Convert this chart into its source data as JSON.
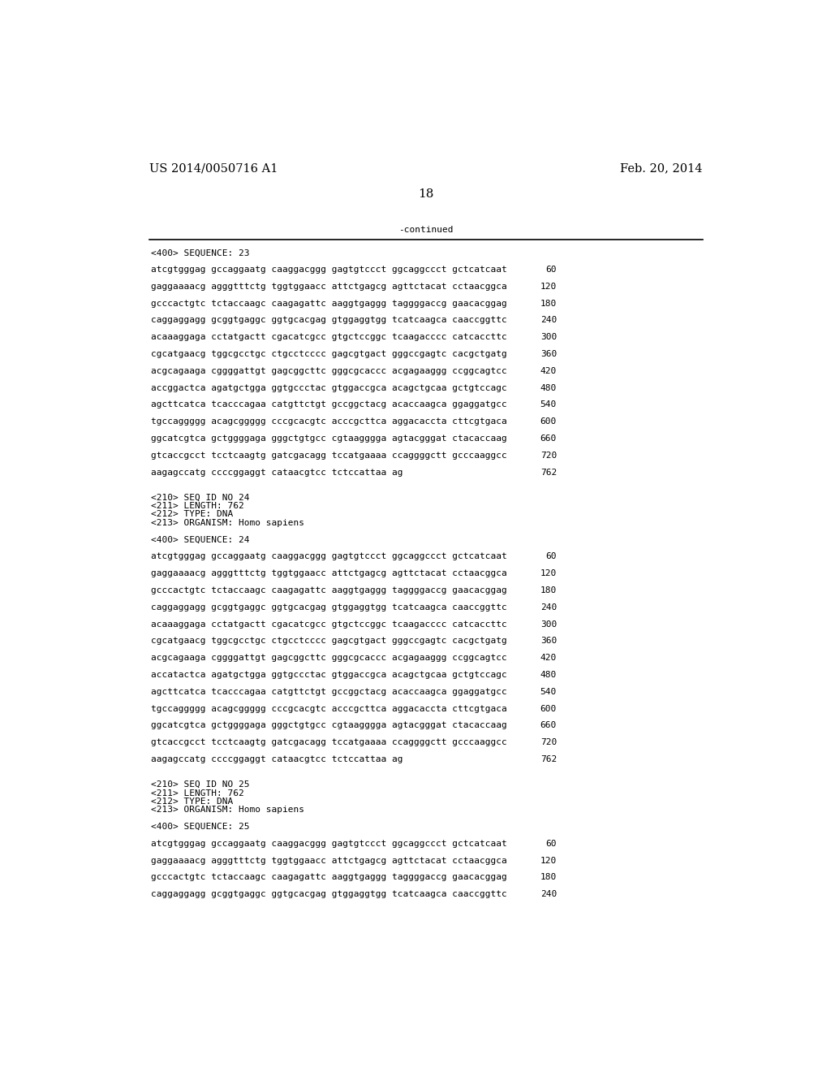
{
  "header_left": "US 2014/0050716 A1",
  "header_right": "Feb. 20, 2014",
  "page_number": "18",
  "continued_label": "-continued",
  "background_color": "#ffffff",
  "text_color": "#000000",
  "mono_font_size": 8.0,
  "header_font_size": 10.5,
  "page_num_font_size": 11.0,
  "content": [
    {
      "type": "seq_header",
      "text": "<400> SEQUENCE: 23"
    },
    {
      "type": "blank"
    },
    {
      "type": "seq_line",
      "text": "atcgtgggag gccaggaatg caaggacggg gagtgtccct ggcaggccct gctcatcaat",
      "num": "60"
    },
    {
      "type": "blank"
    },
    {
      "type": "seq_line",
      "text": "gaggaaaacg agggtttctg tggtggaacc attctgagcg agttctacat cctaacggca",
      "num": "120"
    },
    {
      "type": "blank"
    },
    {
      "type": "seq_line",
      "text": "gcccactgtc tctaccaagc caagagattc aaggtgaggg taggggaccg gaacacggag",
      "num": "180"
    },
    {
      "type": "blank"
    },
    {
      "type": "seq_line",
      "text": "caggaggagg gcggtgaggc ggtgcacgag gtggaggtgg tcatcaagca caaccggttc",
      "num": "240"
    },
    {
      "type": "blank"
    },
    {
      "type": "seq_line",
      "text": "acaaaggaga cctatgactt cgacatcgcc gtgctccggc tcaagacccc catcaccttc",
      "num": "300"
    },
    {
      "type": "blank"
    },
    {
      "type": "seq_line",
      "text": "cgcatgaacg tggcgcctgc ctgcctcccc gagcgtgact gggccgagtc cacgctgatg",
      "num": "360"
    },
    {
      "type": "blank"
    },
    {
      "type": "seq_line",
      "text": "acgcagaaga cggggattgt gagcggcttc gggcgcaccc acgagaaggg ccggcagtcc",
      "num": "420"
    },
    {
      "type": "blank"
    },
    {
      "type": "seq_line",
      "text": "accggactca agatgctgga ggtgccctac gtggaccgca acagctgcaa gctgtccagc",
      "num": "480"
    },
    {
      "type": "blank"
    },
    {
      "type": "seq_line",
      "text": "agcttcatca tcacccagaa catgttctgt gccggctacg acaccaagca ggaggatgcc",
      "num": "540"
    },
    {
      "type": "blank"
    },
    {
      "type": "seq_line",
      "text": "tgccaggggg acagcggggg cccgcacgtc acccgcttca aggacaccta cttcgtgaca",
      "num": "600"
    },
    {
      "type": "blank"
    },
    {
      "type": "seq_line",
      "text": "ggcatcgtca gctggggaga gggctgtgcc cgtaagggga agtacgggat ctacaccaag",
      "num": "660"
    },
    {
      "type": "blank"
    },
    {
      "type": "seq_line",
      "text": "gtcaccgcct tcctcaagtg gatcgacagg tccatgaaaa ccaggggctt gcccaaggcc",
      "num": "720"
    },
    {
      "type": "blank"
    },
    {
      "type": "seq_line",
      "text": "aagagccatg ccccggaggt cataacgtcc tctccattaa ag",
      "num": "762"
    },
    {
      "type": "blank"
    },
    {
      "type": "blank"
    },
    {
      "type": "meta",
      "text": "<210> SEQ ID NO 24"
    },
    {
      "type": "meta",
      "text": "<211> LENGTH: 762"
    },
    {
      "type": "meta",
      "text": "<212> TYPE: DNA"
    },
    {
      "type": "meta",
      "text": "<213> ORGANISM: Homo sapiens"
    },
    {
      "type": "blank"
    },
    {
      "type": "seq_header",
      "text": "<400> SEQUENCE: 24"
    },
    {
      "type": "blank"
    },
    {
      "type": "seq_line",
      "text": "atcgtgggag gccaggaatg caaggacggg gagtgtccct ggcaggccct gctcatcaat",
      "num": "60"
    },
    {
      "type": "blank"
    },
    {
      "type": "seq_line",
      "text": "gaggaaaacg agggtttctg tggtggaacc attctgagcg agttctacat cctaacggca",
      "num": "120"
    },
    {
      "type": "blank"
    },
    {
      "type": "seq_line",
      "text": "gcccactgtc tctaccaagc caagagattc aaggtgaggg taggggaccg gaacacggag",
      "num": "180"
    },
    {
      "type": "blank"
    },
    {
      "type": "seq_line",
      "text": "caggaggagg gcggtgaggc ggtgcacgag gtggaggtgg tcatcaagca caaccggttc",
      "num": "240"
    },
    {
      "type": "blank"
    },
    {
      "type": "seq_line",
      "text": "acaaaggaga cctatgactt cgacatcgcc gtgctccggc tcaagacccc catcaccttc",
      "num": "300"
    },
    {
      "type": "blank"
    },
    {
      "type": "seq_line",
      "text": "cgcatgaacg tggcgcctgc ctgcctcccc gagcgtgact gggccgagtc cacgctgatg",
      "num": "360"
    },
    {
      "type": "blank"
    },
    {
      "type": "seq_line",
      "text": "acgcagaaga cggggattgt gagcggcttc gggcgcaccc acgagaaggg ccggcagtcc",
      "num": "420"
    },
    {
      "type": "blank"
    },
    {
      "type": "seq_line",
      "text": "accatactca agatgctgga ggtgccctac gtggaccgca acagctgcaa gctgtccagc",
      "num": "480"
    },
    {
      "type": "blank"
    },
    {
      "type": "seq_line",
      "text": "agcttcatca tcacccagaa catgttctgt gccggctacg acaccaagca ggaggatgcc",
      "num": "540"
    },
    {
      "type": "blank"
    },
    {
      "type": "seq_line",
      "text": "tgccaggggg acagcggggg cccgcacgtc acccgcttca aggacaccta cttcgtgaca",
      "num": "600"
    },
    {
      "type": "blank"
    },
    {
      "type": "seq_line",
      "text": "ggcatcgtca gctggggaga gggctgtgcc cgtaagggga agtacgggat ctacaccaag",
      "num": "660"
    },
    {
      "type": "blank"
    },
    {
      "type": "seq_line",
      "text": "gtcaccgcct tcctcaagtg gatcgacagg tccatgaaaa ccaggggctt gcccaaggcc",
      "num": "720"
    },
    {
      "type": "blank"
    },
    {
      "type": "seq_line",
      "text": "aagagccatg ccccggaggt cataacgtcc tctccattaa ag",
      "num": "762"
    },
    {
      "type": "blank"
    },
    {
      "type": "blank"
    },
    {
      "type": "meta",
      "text": "<210> SEQ ID NO 25"
    },
    {
      "type": "meta",
      "text": "<211> LENGTH: 762"
    },
    {
      "type": "meta",
      "text": "<212> TYPE: DNA"
    },
    {
      "type": "meta",
      "text": "<213> ORGANISM: Homo sapiens"
    },
    {
      "type": "blank"
    },
    {
      "type": "seq_header",
      "text": "<400> SEQUENCE: 25"
    },
    {
      "type": "blank"
    },
    {
      "type": "seq_line",
      "text": "atcgtgggag gccaggaatg caaggacggg gagtgtccct ggcaggccct gctcatcaat",
      "num": "60"
    },
    {
      "type": "blank"
    },
    {
      "type": "seq_line",
      "text": "gaggaaaacg agggtttctg tggtggaacc attctgagcg agttctacat cctaacggca",
      "num": "120"
    },
    {
      "type": "blank"
    },
    {
      "type": "seq_line",
      "text": "gcccactgtc tctaccaagc caagagattc aaggtgaggg taggggaccg gaacacggag",
      "num": "180"
    },
    {
      "type": "blank"
    },
    {
      "type": "seq_line",
      "text": "caggaggagg gcggtgaggc ggtgcacgag gtggaggtgg tcatcaagca caaccggttc",
      "num": "240"
    }
  ]
}
